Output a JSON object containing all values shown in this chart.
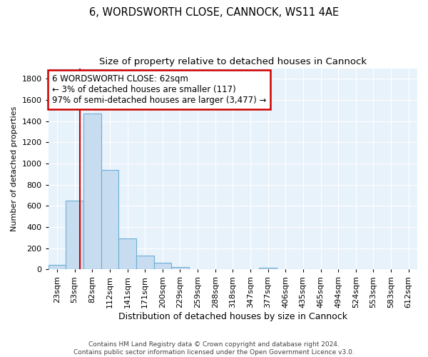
{
  "title": "6, WORDSWORTH CLOSE, CANNOCK, WS11 4AE",
  "subtitle": "Size of property relative to detached houses in Cannock",
  "xlabel": "Distribution of detached houses by size in Cannock",
  "ylabel": "Number of detached properties",
  "categories": [
    "23sqm",
    "53sqm",
    "82sqm",
    "112sqm",
    "141sqm",
    "171sqm",
    "200sqm",
    "229sqm",
    "259sqm",
    "288sqm",
    "318sqm",
    "347sqm",
    "377sqm",
    "406sqm",
    "435sqm",
    "465sqm",
    "494sqm",
    "524sqm",
    "553sqm",
    "583sqm",
    "612sqm"
  ],
  "values": [
    40,
    650,
    1470,
    940,
    295,
    130,
    65,
    25,
    5,
    5,
    5,
    5,
    15,
    5,
    0,
    0,
    0,
    0,
    0,
    0,
    0
  ],
  "bar_color": "#c8dcf0",
  "bar_edge_color": "#6aaed6",
  "annotation_box_text": "6 WORDSWORTH CLOSE: 62sqm\n← 3% of detached houses are smaller (117)\n97% of semi-detached houses are larger (3,477) →",
  "annotation_box_color": "#cc0000",
  "vline_color": "#cc0000",
  "ylim": [
    0,
    1900
  ],
  "yticks": [
    0,
    200,
    400,
    600,
    800,
    1000,
    1200,
    1400,
    1600,
    1800
  ],
  "footer_line1": "Contains HM Land Registry data © Crown copyright and database right 2024.",
  "footer_line2": "Contains public sector information licensed under the Open Government Licence v3.0.",
  "bg_color": "#e8f2fb",
  "title_fontsize": 10.5,
  "subtitle_fontsize": 9.5,
  "xlabel_fontsize": 9,
  "ylabel_fontsize": 8,
  "tick_fontsize": 8,
  "annotation_fontsize": 8.5,
  "footer_fontsize": 6.5,
  "bar_width": 1.0
}
